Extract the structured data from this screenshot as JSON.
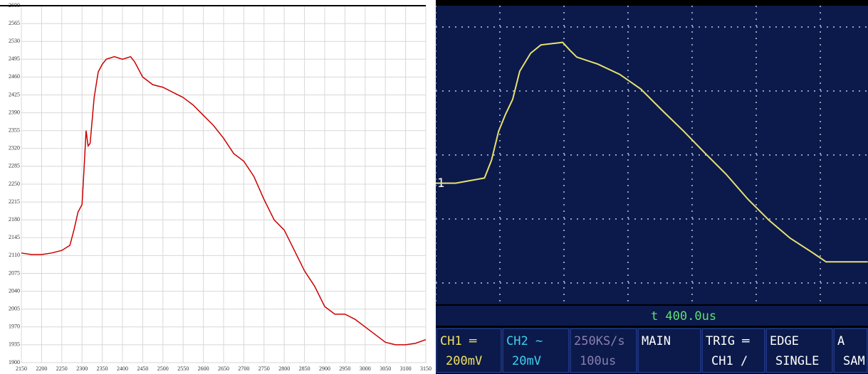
{
  "chart_data": [
    {
      "type": "line",
      "x": [
        2150,
        2175,
        2200,
        2225,
        2250,
        2270,
        2280,
        2290,
        2300,
        2305,
        2310,
        2315,
        2320,
        2330,
        2340,
        2350,
        2360,
        2380,
        2400,
        2420,
        2430,
        2450,
        2475,
        2500,
        2525,
        2550,
        2575,
        2600,
        2625,
        2650,
        2675,
        2700,
        2725,
        2750,
        2775,
        2800,
        2825,
        2850,
        2875,
        2900,
        2925,
        2950,
        2975,
        3000,
        3025,
        3050,
        3075,
        3100,
        3125,
        3150
      ],
      "series": [
        {
          "color": "#cc0000",
          "values": [
            2115,
            2112,
            2112,
            2115,
            2120,
            2130,
            2160,
            2195,
            2210,
            2280,
            2355,
            2325,
            2330,
            2420,
            2470,
            2485,
            2495,
            2500,
            2495,
            2500,
            2490,
            2460,
            2445,
            2440,
            2430,
            2420,
            2405,
            2385,
            2365,
            2340,
            2310,
            2295,
            2265,
            2220,
            2180,
            2160,
            2120,
            2080,
            2050,
            2010,
            1995,
            1995,
            1985,
            1970,
            1955,
            1940,
            1935,
            1935,
            1938,
            1945
          ]
        }
      ],
      "xlim": [
        2150,
        3150
      ],
      "xticks": [
        2150,
        2200,
        2250,
        2300,
        2350,
        2400,
        2450,
        2500,
        2550,
        2600,
        2650,
        2700,
        2750,
        2800,
        2850,
        2900,
        2950,
        3000,
        3050,
        3100,
        3150
      ],
      "ylim": [
        1900,
        2600
      ],
      "yticks": [
        1900,
        1935,
        1970,
        2005,
        2040,
        2075,
        2110,
        2145,
        2180,
        2215,
        2250,
        2285,
        2320,
        2355,
        2390,
        2425,
        2460,
        2495,
        2530,
        2565,
        2600
      ],
      "grid": true,
      "grid_color": "#d8d8d8"
    },
    {
      "type": "scope",
      "timebase_label": "t 400.0us",
      "channel_marker": "1",
      "x": [
        0,
        0.31,
        0.76,
        0.87,
        0.98,
        1.09,
        1.2,
        1.31,
        1.48,
        1.64,
        1.98,
        2.09,
        2.2,
        2.53,
        2.87,
        3.2,
        3.53,
        3.87,
        4.2,
        4.53,
        4.87,
        5.2,
        5.53,
        5.87,
        6.09,
        6.74
      ],
      "series": [
        {
          "color": "#e8e070",
          "values": [
            -0.44,
            -0.44,
            -0.36,
            -0.08,
            0.37,
            0.64,
            0.87,
            1.31,
            1.59,
            1.72,
            1.76,
            1.64,
            1.53,
            1.42,
            1.26,
            1.03,
            0.7,
            0.37,
            0.03,
            -0.3,
            -0.69,
            -1.02,
            -1.3,
            -1.52,
            -1.67,
            -1.67
          ]
        }
      ],
      "readouts": [
        {
          "top": "CH1 ═",
          "bottom": "200mV",
          "color": "#f0e060"
        },
        {
          "top": "CH2 ∼",
          "bottom": "20mV",
          "color": "#40d0f0"
        },
        {
          "top": "250KS/s",
          "bottom": "100us",
          "color": "#8a7fb0"
        },
        {
          "top": "MAIN",
          "bottom": "",
          "color": "#ffffff"
        },
        {
          "top": "TRIG ═",
          "bottom": "CH1 /",
          "color": "#ffffff"
        },
        {
          "top": "EDGE",
          "bottom": "SINGLE",
          "color": "#ffffff"
        },
        {
          "top": "A",
          "bottom": "SAM",
          "color": "#ffffff"
        }
      ]
    }
  ]
}
